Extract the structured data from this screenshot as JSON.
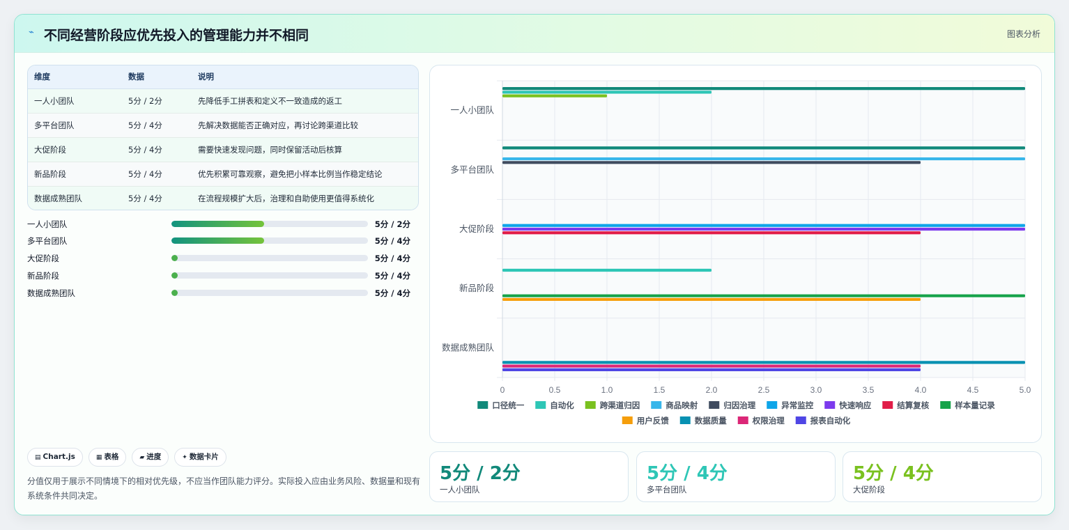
{
  "header": {
    "icon": "⌁",
    "title": "不同经营阶段应优先投入的管理能力并不相同",
    "link": "图表分析"
  },
  "table": {
    "headers": [
      "维度",
      "数据",
      "说明"
    ],
    "rows": [
      [
        "一人小团队",
        "5分 / 2分",
        "先降低手工拼表和定义不一致造成的返工"
      ],
      [
        "多平台团队",
        "5分 / 4分",
        "先解决数据能否正确对应，再讨论跨渠道比较"
      ],
      [
        "大促阶段",
        "5分 / 4分",
        "需要快速发现问题，同时保留活动后核算"
      ],
      [
        "新品阶段",
        "5分 / 4分",
        "优先积累可靠观察，避免把小样本比例当作稳定结论"
      ],
      [
        "数据成熟团队",
        "5分 / 4分",
        "在流程规模扩大后，治理和自助使用更值得系统化"
      ]
    ]
  },
  "progress": [
    {
      "label": "一人小团队",
      "value": "5分 / 2分",
      "fraction": 0.47
    },
    {
      "label": "多平台团队",
      "value": "5分 / 4分",
      "fraction": 0.47
    },
    {
      "label": "大促阶段",
      "value": "5分 / 4分",
      "fraction": 0
    },
    {
      "label": "新品阶段",
      "value": "5分 / 4分",
      "fraction": 0
    },
    {
      "label": "数据成熟团队",
      "value": "5分 / 4分",
      "fraction": 0
    }
  ],
  "chips": [
    {
      "icon": "▤",
      "label": "Chart.js"
    },
    {
      "icon": "▦",
      "label": "表格"
    },
    {
      "icon": "▰",
      "label": "进度"
    },
    {
      "icon": "✦",
      "label": "数据卡片"
    }
  ],
  "note": "分值仅用于展示不同情境下的相对优先级，不应当作团队能力评分。实际投入应由业务风险、数据量和现有系统条件共同决定。",
  "stats": [
    {
      "value": "5分 / 2分",
      "label": "一人小团队",
      "color": "#11897a"
    },
    {
      "value": "5分 / 4分",
      "label": "多平台团队",
      "color": "#2ec6b6"
    },
    {
      "value": "5分 / 4分",
      "label": "大促阶段",
      "color": "#7ac11f"
    }
  ],
  "chart_data": {
    "type": "bar",
    "orientation": "horizontal",
    "categories": [
      "一人小团队",
      "多平台团队",
      "大促阶段",
      "新品阶段",
      "数据成熟团队"
    ],
    "xlim": [
      0,
      5
    ],
    "xticks": [
      "0",
      "0.5",
      "1.0",
      "1.5",
      "2.0",
      "2.5",
      "3.0",
      "3.5",
      "4.0",
      "4.5",
      "5.0"
    ],
    "grid": true,
    "legend_position": "bottom",
    "series": [
      {
        "name": "口径统一",
        "color": "#11897a",
        "values": [
          5,
          5,
          null,
          null,
          null
        ]
      },
      {
        "name": "自动化",
        "color": "#2ec6b6",
        "values": [
          2,
          null,
          null,
          2,
          null
        ]
      },
      {
        "name": "跨渠道归因",
        "color": "#7ac11f",
        "values": [
          1,
          null,
          null,
          null,
          null
        ]
      },
      {
        "name": "商品映射",
        "color": "#38b6ea",
        "values": [
          null,
          5,
          null,
          null,
          null
        ]
      },
      {
        "name": "归因治理",
        "color": "#3f4b5f",
        "values": [
          null,
          4,
          null,
          null,
          null
        ]
      },
      {
        "name": "异常监控",
        "color": "#0ea5e9",
        "values": [
          null,
          null,
          5,
          null,
          null
        ]
      },
      {
        "name": "快速响应",
        "color": "#7c3aed",
        "values": [
          null,
          null,
          5,
          null,
          null
        ]
      },
      {
        "name": "结算复核",
        "color": "#e11d48",
        "values": [
          null,
          null,
          4,
          null,
          null
        ]
      },
      {
        "name": "样本量记录",
        "color": "#16a34a",
        "values": [
          null,
          null,
          null,
          5,
          null
        ]
      },
      {
        "name": "用户反馈",
        "color": "#f59e0b",
        "values": [
          null,
          null,
          null,
          4,
          null
        ]
      },
      {
        "name": "数据质量",
        "color": "#0891b2",
        "values": [
          null,
          null,
          null,
          null,
          5
        ]
      },
      {
        "name": "权限治理",
        "color": "#db2777",
        "values": [
          null,
          null,
          null,
          null,
          4
        ]
      },
      {
        "name": "报表自动化",
        "color": "#4f46e5",
        "values": [
          null,
          null,
          null,
          null,
          4
        ]
      }
    ]
  }
}
